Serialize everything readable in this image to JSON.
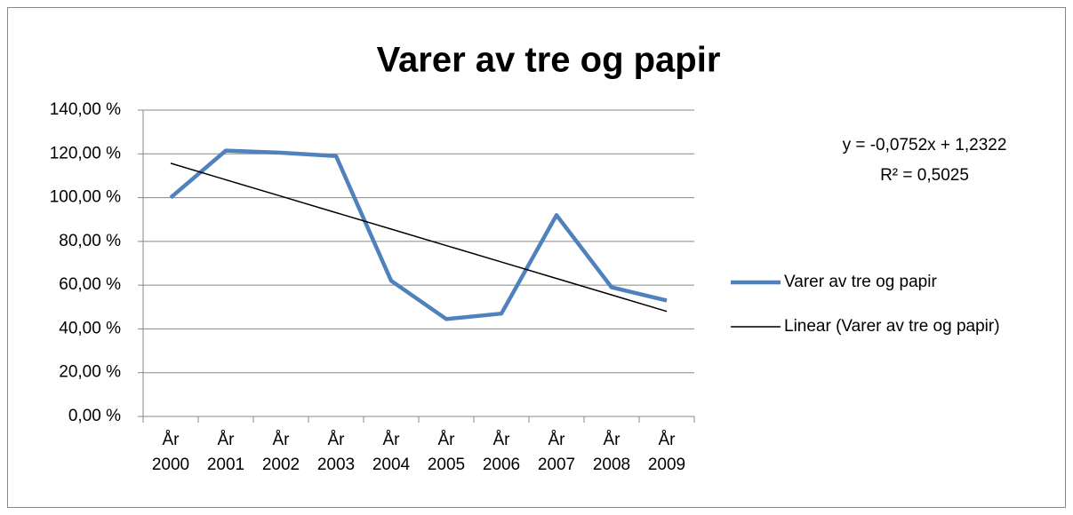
{
  "chart_data": {
    "type": "line",
    "title": "Varer av tre og papir",
    "categories": [
      "År 2000",
      "År 2001",
      "År 2002",
      "År 2003",
      "År 2004",
      "År 2005",
      "År 2006",
      "År 2007",
      "År 2008",
      "År 2009"
    ],
    "series": [
      {
        "name": "Varer av tre og papir",
        "color": "#4f81bd",
        "values": [
          100,
          121.5,
          120.5,
          119,
          62,
          44.5,
          47,
          92,
          59,
          53
        ]
      },
      {
        "name": "Linear (Varer av tre og papir)",
        "color": "#000000",
        "values": [
          115.7,
          108.18,
          100.66,
          93.14,
          85.62,
          78.1,
          70.58,
          63.06,
          55.54,
          48.02
        ]
      }
    ],
    "annotations": [
      "y = -0,0752x + 1,2322",
      "R² = 0,5025"
    ],
    "ylim": [
      0,
      140
    ],
    "yticks": [
      {
        "value": 0,
        "label": "0,00 %"
      },
      {
        "value": 20,
        "label": "20,00 %"
      },
      {
        "value": 40,
        "label": "40,00 %"
      },
      {
        "value": 60,
        "label": "60,00 %"
      },
      {
        "value": 80,
        "label": "80,00 %"
      },
      {
        "value": 100,
        "label": "100,00 %"
      },
      {
        "value": 120,
        "label": "120,00 %"
      },
      {
        "value": 140,
        "label": "140,00 %"
      }
    ],
    "grid": true,
    "legend": "right"
  }
}
